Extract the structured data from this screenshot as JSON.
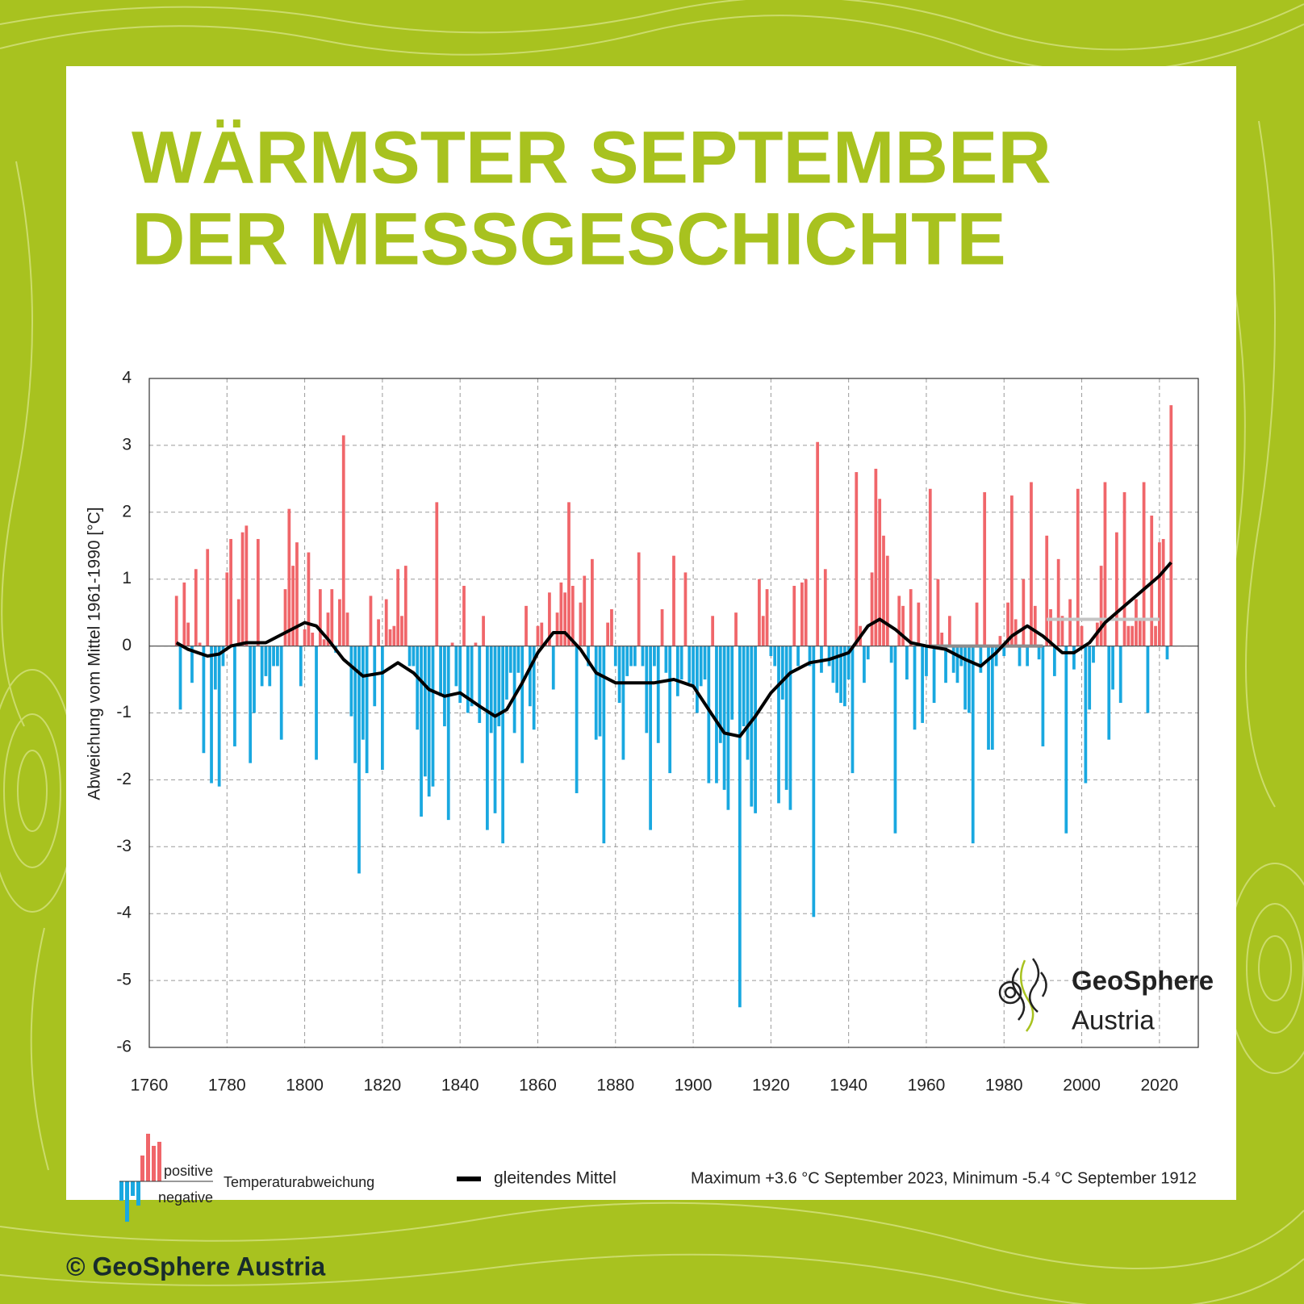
{
  "title_lines": [
    "WÄRMSTER SEPTEMBER",
    "DER MESSGESCHICHTE"
  ],
  "footer": "© GeoSphere Austria",
  "logo": [
    "GeoSphere",
    "Austria"
  ],
  "chart_data": {
    "type": "bar",
    "y_label": "Abweichung vom Mittel 1961-1990  [°C]",
    "xlim": [
      1760,
      2030
    ],
    "ylim": [
      -6,
      4
    ],
    "xticks": [
      1760,
      1780,
      1800,
      1820,
      1840,
      1860,
      1880,
      1900,
      1920,
      1940,
      1960,
      1980,
      2000,
      2020
    ],
    "yticks": [
      -6,
      -5,
      -4,
      -3,
      -2,
      -1,
      0,
      1,
      2,
      3,
      4
    ],
    "grid": true,
    "legend_labels": {
      "positive": "positive",
      "negative": "negative"
    },
    "annotation": "Maximum +3.6 °C September 2023, Minimum -5.4 °C September 1912",
    "series": [
      {
        "name": "Temperaturabweichung",
        "color_positive": "#f0666a",
        "color_negative": "#19a8e0",
        "x": [
          1767,
          1768,
          1769,
          1770,
          1771,
          1772,
          1773,
          1774,
          1775,
          1776,
          1777,
          1778,
          1779,
          1780,
          1781,
          1782,
          1783,
          1784,
          1785,
          1786,
          1787,
          1788,
          1789,
          1790,
          1791,
          1792,
          1793,
          1794,
          1795,
          1796,
          1797,
          1798,
          1799,
          1800,
          1801,
          1802,
          1803,
          1804,
          1805,
          1806,
          1807,
          1808,
          1809,
          1810,
          1811,
          1812,
          1813,
          1814,
          1815,
          1816,
          1817,
          1818,
          1819,
          1820,
          1821,
          1822,
          1823,
          1824,
          1825,
          1826,
          1827,
          1828,
          1829,
          1830,
          1831,
          1832,
          1833,
          1834,
          1835,
          1836,
          1837,
          1838,
          1839,
          1840,
          1841,
          1842,
          1843,
          1844,
          1845,
          1846,
          1847,
          1848,
          1849,
          1850,
          1851,
          1852,
          1853,
          1854,
          1855,
          1856,
          1857,
          1858,
          1859,
          1860,
          1861,
          1862,
          1863,
          1864,
          1865,
          1866,
          1867,
          1868,
          1869,
          1870,
          1871,
          1872,
          1873,
          1874,
          1875,
          1876,
          1877,
          1878,
          1879,
          1880,
          1881,
          1882,
          1883,
          1884,
          1885,
          1886,
          1887,
          1888,
          1889,
          1890,
          1891,
          1892,
          1893,
          1894,
          1895,
          1896,
          1897,
          1898,
          1899,
          1900,
          1901,
          1902,
          1903,
          1904,
          1905,
          1906,
          1907,
          1908,
          1909,
          1910,
          1911,
          1912,
          1913,
          1914,
          1915,
          1916,
          1917,
          1918,
          1919,
          1920,
          1921,
          1922,
          1923,
          1924,
          1925,
          1926,
          1927,
          1928,
          1929,
          1930,
          1931,
          1932,
          1933,
          1934,
          1935,
          1936,
          1937,
          1938,
          1939,
          1940,
          1941,
          1942,
          1943,
          1944,
          1945,
          1946,
          1947,
          1948,
          1949,
          1950,
          1951,
          1952,
          1953,
          1954,
          1955,
          1956,
          1957,
          1958,
          1959,
          1960,
          1961,
          1962,
          1963,
          1964,
          1965,
          1966,
          1967,
          1968,
          1969,
          1970,
          1971,
          1972,
          1973,
          1974,
          1975,
          1976,
          1977,
          1978,
          1979,
          1980,
          1981,
          1982,
          1983,
          1984,
          1985,
          1986,
          1987,
          1988,
          1989,
          1990,
          1991,
          1992,
          1993,
          1994,
          1995,
          1996,
          1997,
          1998,
          1999,
          2000,
          2001,
          2002,
          2003,
          2004,
          2005,
          2006,
          2007,
          2008,
          2009,
          2010,
          2011,
          2012,
          2013,
          2014,
          2015,
          2016,
          2017,
          2018,
          2019,
          2020,
          2021,
          2022,
          2023
        ],
        "values": [
          0.75,
          -0.95,
          0.95,
          0.35,
          -0.55,
          1.15,
          0.05,
          -1.6,
          1.45,
          -2.05,
          -0.65,
          -2.1,
          -0.3,
          1.1,
          1.6,
          -1.5,
          0.7,
          1.7,
          1.8,
          -1.75,
          -1.0,
          1.6,
          -0.6,
          -0.45,
          -0.6,
          -0.3,
          -0.3,
          -1.4,
          0.85,
          2.05,
          1.2,
          1.55,
          -0.6,
          0.25,
          1.4,
          0.2,
          -1.7,
          0.85,
          0.1,
          0.5,
          0.85,
          -0.1,
          0.7,
          3.15,
          0.5,
          -1.05,
          -1.75,
          -3.4,
          -1.4,
          -1.9,
          0.75,
          -0.9,
          0.4,
          -1.85,
          0.7,
          0.25,
          0.3,
          1.15,
          0.45,
          1.2,
          -0.3,
          -0.3,
          -1.25,
          -2.55,
          -1.95,
          -2.25,
          -2.1,
          2.15,
          -0.75,
          -1.2,
          -2.6,
          0.05,
          -0.6,
          -0.85,
          0.9,
          -1.0,
          -0.9,
          0.05,
          -1.15,
          0.45,
          -2.75,
          -1.3,
          -2.5,
          -1.2,
          -2.95,
          -0.8,
          -0.4,
          -1.3,
          -0.4,
          -1.75,
          0.6,
          -0.9,
          -1.25,
          0.3,
          0.35,
          0.05,
          0.8,
          -0.65,
          0.5,
          0.95,
          0.8,
          2.15,
          0.9,
          -2.2,
          0.65,
          1.05,
          -0.3,
          1.3,
          -1.4,
          -1.35,
          -2.95,
          0.35,
          0.55,
          -0.3,
          -0.85,
          -1.7,
          -0.45,
          -0.3,
          -0.3,
          1.4,
          -0.3,
          -1.3,
          -2.75,
          -0.3,
          -1.45,
          0.55,
          -0.4,
          -1.9,
          1.35,
          -0.75,
          -0.5,
          1.1,
          -0.55,
          -0.6,
          -1.0,
          -0.6,
          -0.5,
          -2.05,
          0.45,
          -2.05,
          -1.45,
          -2.15,
          -2.45,
          -1.1,
          0.5,
          -5.4,
          -1.2,
          -1.7,
          -2.4,
          -2.5,
          1.0,
          0.45,
          0.85,
          -0.15,
          -0.3,
          -2.35,
          -0.8,
          -2.15,
          -2.45,
          0.9,
          -0.3,
          0.95,
          1.0,
          -0.3,
          -4.05,
          3.05,
          -0.4,
          1.15,
          -0.3,
          -0.55,
          -0.7,
          -0.85,
          -0.9,
          -0.5,
          -1.9,
          2.6,
          0.3,
          -0.55,
          -0.2,
          1.1,
          2.65,
          2.2,
          1.65,
          1.35,
          -0.25,
          -2.8,
          0.75,
          0.6,
          -0.5,
          0.85,
          -1.25,
          0.65,
          -1.15,
          -0.45,
          2.35,
          -0.85,
          1.0,
          0.2,
          -0.55,
          0.45,
          -0.4,
          -0.55,
          -0.3,
          -0.95,
          -1.0,
          -2.95,
          0.65,
          -0.4,
          2.3,
          -1.55,
          -1.55,
          -0.3,
          0.15,
          -0.15,
          0.65,
          2.25,
          0.4,
          -0.3,
          1.0,
          -0.3,
          2.45,
          0.6,
          -0.2,
          -1.5,
          1.65,
          0.55,
          -0.45,
          1.3,
          0.45,
          -2.8,
          0.7,
          -0.35,
          2.35,
          0.3,
          -2.05,
          -0.95,
          -0.25,
          0.35,
          1.2,
          2.45,
          -1.4,
          -0.65,
          1.7,
          -0.85,
          2.3,
          0.3,
          0.3,
          0.7,
          0.4,
          2.45,
          -1.0,
          1.95,
          0.3,
          1.55,
          1.6,
          -0.2,
          3.6
        ]
      },
      {
        "name": "gleitendes Mittel",
        "color": "#000000",
        "x": [
          1767,
          1770,
          1775,
          1778,
          1781,
          1785,
          1790,
          1795,
          1800,
          1803,
          1806,
          1810,
          1815,
          1820,
          1824,
          1828,
          1832,
          1836,
          1840,
          1845,
          1849,
          1852,
          1856,
          1860,
          1864,
          1867,
          1871,
          1875,
          1880,
          1885,
          1890,
          1895,
          1900,
          1904,
          1908,
          1912,
          1916,
          1920,
          1925,
          1930,
          1935,
          1940,
          1945,
          1948,
          1952,
          1956,
          1960,
          1965,
          1970,
          1974,
          1978,
          1982,
          1986,
          1990,
          1995,
          1998,
          2002,
          2006,
          2010,
          2015,
          2020,
          2023
        ],
        "values": [
          0.05,
          -0.05,
          -0.15,
          -0.12,
          0.0,
          0.05,
          0.05,
          0.2,
          0.35,
          0.3,
          0.1,
          -0.2,
          -0.45,
          -0.4,
          -0.25,
          -0.4,
          -0.65,
          -0.75,
          -0.7,
          -0.9,
          -1.05,
          -0.95,
          -0.55,
          -0.1,
          0.2,
          0.2,
          -0.05,
          -0.4,
          -0.55,
          -0.55,
          -0.55,
          -0.5,
          -0.6,
          -0.95,
          -1.3,
          -1.35,
          -1.05,
          -0.7,
          -0.4,
          -0.25,
          -0.2,
          -0.1,
          0.3,
          0.4,
          0.25,
          0.05,
          0.0,
          -0.05,
          -0.2,
          -0.3,
          -0.1,
          0.15,
          0.3,
          0.15,
          -0.1,
          -0.1,
          0.05,
          0.35,
          0.55,
          0.8,
          1.05,
          1.25
        ]
      }
    ],
    "reference_lines": [
      {
        "x": [
          1961,
          1990
        ],
        "values": [
          0,
          0
        ],
        "color": "#8c8c8c"
      },
      {
        "x": [
          1991,
          2020
        ],
        "values": [
          0.4,
          0.4
        ],
        "color": "#c4c4c4"
      }
    ]
  }
}
